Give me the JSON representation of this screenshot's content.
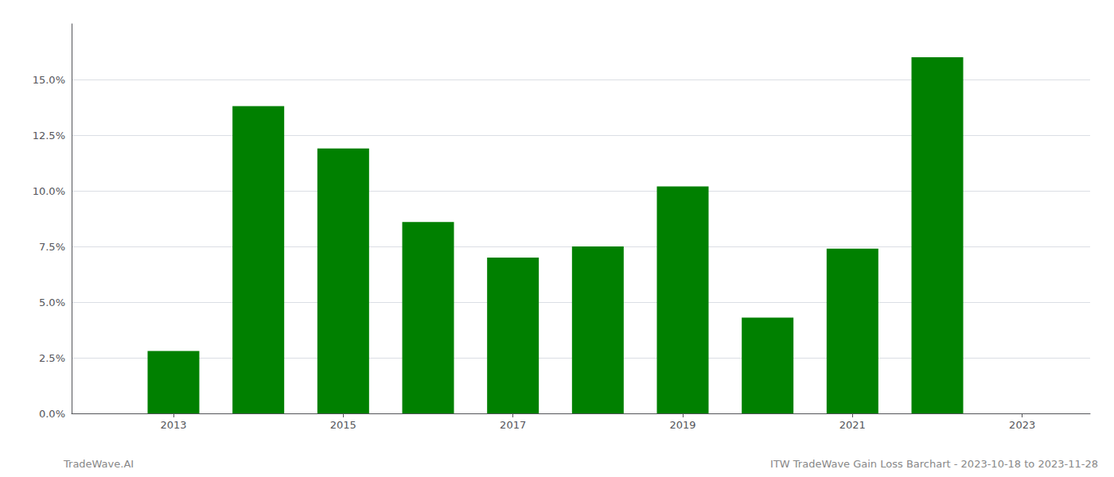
{
  "chart_data": {
    "type": "bar",
    "x": [
      2013,
      2014,
      2015,
      2016,
      2017,
      2018,
      2019,
      2020,
      2021,
      2022
    ],
    "values": [
      0.028,
      0.138,
      0.119,
      0.086,
      0.07,
      0.075,
      0.102,
      0.043,
      0.074,
      0.16
    ],
    "color": "#008000",
    "xlim": [
      2011.8,
      2023.8
    ],
    "xticks": [
      2013,
      2015,
      2017,
      2019,
      2021,
      2023
    ],
    "ylim": [
      0,
      0.175
    ],
    "yticks": [
      {
        "value": 0.0,
        "label": "0.0%"
      },
      {
        "value": 0.025,
        "label": "2.5%"
      },
      {
        "value": 0.05,
        "label": "5.0%"
      },
      {
        "value": 0.075,
        "label": "7.5%"
      },
      {
        "value": 0.1,
        "label": "10.0%"
      },
      {
        "value": 0.125,
        "label": "12.5%"
      },
      {
        "value": 0.15,
        "label": "15.0%"
      }
    ],
    "grid": true,
    "annotations": [
      "TradeWave.AI",
      "ITW TradeWave Gain Loss Barchart - 2023-10-18 to 2023-11-28"
    ]
  }
}
